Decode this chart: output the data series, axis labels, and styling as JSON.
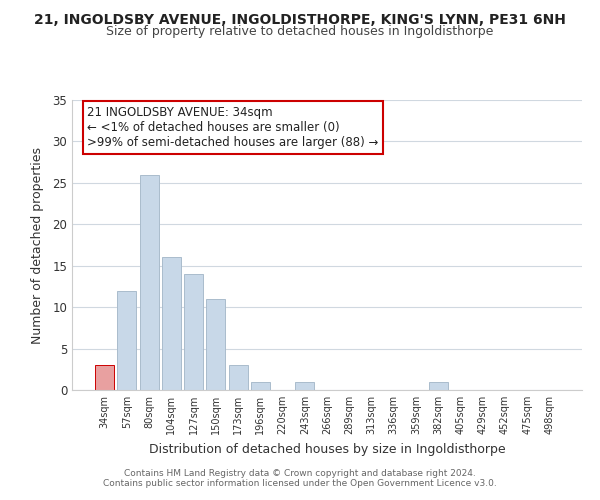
{
  "title": "21, INGOLDSBY AVENUE, INGOLDISTHORPE, KING'S LYNN, PE31 6NH",
  "subtitle": "Size of property relative to detached houses in Ingoldisthorpe",
  "xlabel": "Distribution of detached houses by size in Ingoldisthorpe",
  "ylabel": "Number of detached properties",
  "bar_color": "#c8d8e8",
  "bar_edge_color": "#aabccc",
  "categories": [
    "34sqm",
    "57sqm",
    "80sqm",
    "104sqm",
    "127sqm",
    "150sqm",
    "173sqm",
    "196sqm",
    "220sqm",
    "243sqm",
    "266sqm",
    "289sqm",
    "313sqm",
    "336sqm",
    "359sqm",
    "382sqm",
    "405sqm",
    "429sqm",
    "452sqm",
    "475sqm",
    "498sqm"
  ],
  "values": [
    3,
    12,
    26,
    16,
    14,
    11,
    3,
    1,
    0,
    1,
    0,
    0,
    0,
    0,
    0,
    1,
    0,
    0,
    0,
    0,
    0
  ],
  "ylim": [
    0,
    35
  ],
  "yticks": [
    0,
    5,
    10,
    15,
    20,
    25,
    30,
    35
  ],
  "annotation_title": "21 INGOLDSBY AVENUE: 34sqm",
  "annotation_line1": "← <1% of detached houses are smaller (0)",
  "annotation_line2": ">99% of semi-detached houses are larger (88) →",
  "annotation_box_color": "#ffffff",
  "annotation_box_edge": "#cc0000",
  "footer1": "Contains HM Land Registry data © Crown copyright and database right 2024.",
  "footer2": "Contains public sector information licensed under the Open Government Licence v3.0.",
  "highlight_bar_index": 0,
  "highlight_color": "#e8a0a0",
  "highlight_edge_color": "#cc0000",
  "background_color": "#ffffff",
  "grid_color": "#d0d8e0"
}
